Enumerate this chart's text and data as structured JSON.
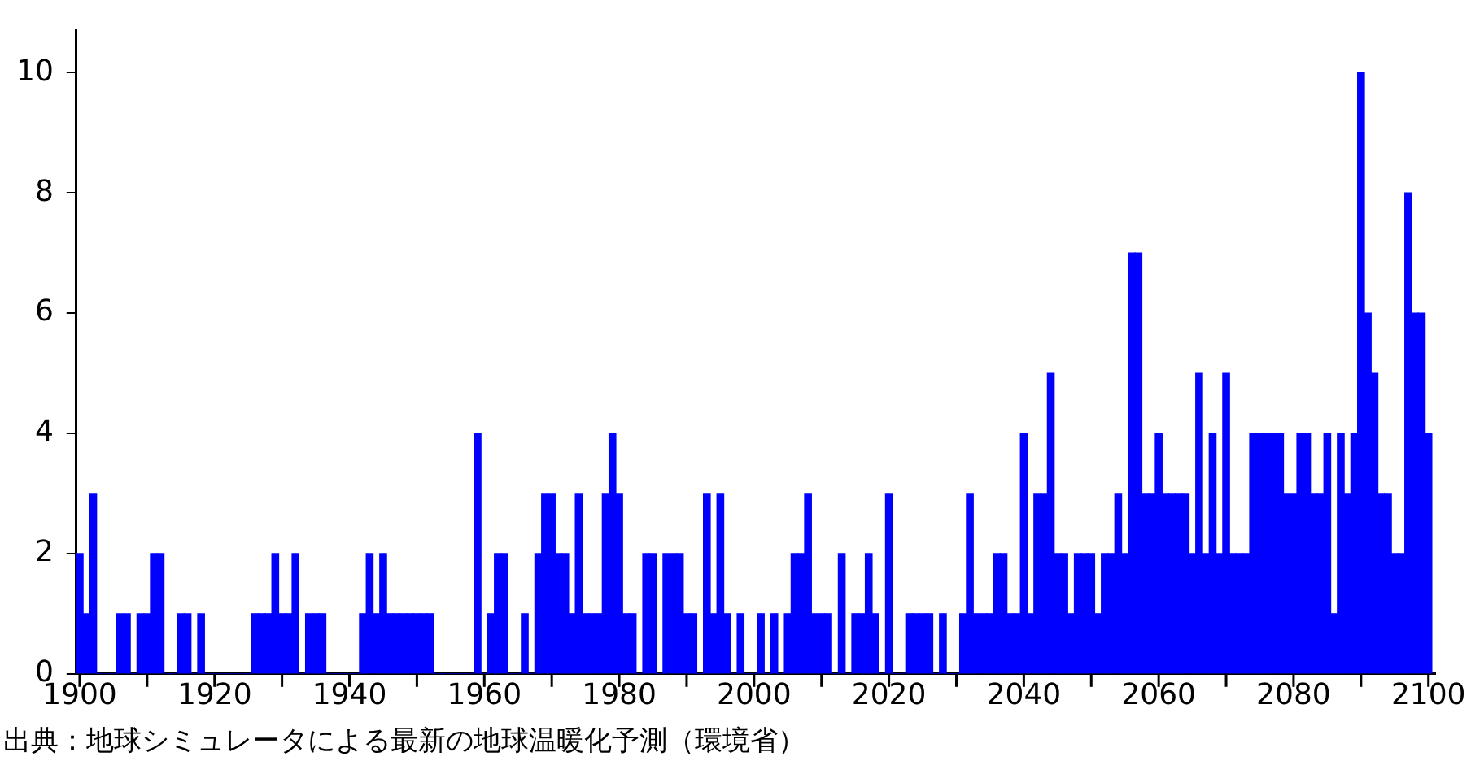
{
  "chart_data": {
    "type": "bar",
    "x": [
      1900,
      1901,
      1902,
      1903,
      1904,
      1905,
      1906,
      1907,
      1908,
      1909,
      1910,
      1911,
      1912,
      1913,
      1914,
      1915,
      1916,
      1917,
      1918,
      1919,
      1920,
      1921,
      1922,
      1923,
      1924,
      1925,
      1926,
      1927,
      1928,
      1929,
      1930,
      1931,
      1932,
      1933,
      1934,
      1935,
      1936,
      1937,
      1938,
      1939,
      1940,
      1941,
      1942,
      1943,
      1944,
      1945,
      1946,
      1947,
      1948,
      1949,
      1950,
      1951,
      1952,
      1953,
      1954,
      1955,
      1956,
      1957,
      1958,
      1959,
      1960,
      1961,
      1962,
      1963,
      1964,
      1965,
      1966,
      1967,
      1968,
      1969,
      1970,
      1971,
      1972,
      1973,
      1974,
      1975,
      1976,
      1977,
      1978,
      1979,
      1980,
      1981,
      1982,
      1983,
      1984,
      1985,
      1986,
      1987,
      1988,
      1989,
      1990,
      1991,
      1992,
      1993,
      1994,
      1995,
      1996,
      1997,
      1998,
      1999,
      2000,
      2001,
      2002,
      2003,
      2004,
      2005,
      2006,
      2007,
      2008,
      2009,
      2010,
      2011,
      2012,
      2013,
      2014,
      2015,
      2016,
      2017,
      2018,
      2019,
      2020,
      2021,
      2022,
      2023,
      2024,
      2025,
      2026,
      2027,
      2028,
      2029,
      2030,
      2031,
      2032,
      2033,
      2034,
      2035,
      2036,
      2037,
      2038,
      2039,
      2040,
      2041,
      2042,
      2043,
      2044,
      2045,
      2046,
      2047,
      2048,
      2049,
      2050,
      2051,
      2052,
      2053,
      2054,
      2055,
      2056,
      2057,
      2058,
      2059,
      2060,
      2061,
      2062,
      2063,
      2064,
      2065,
      2066,
      2067,
      2068,
      2069,
      2070,
      2071,
      2072,
      2073,
      2074,
      2075,
      2076,
      2077,
      2078,
      2079,
      2080,
      2081,
      2082,
      2083,
      2084,
      2085,
      2086,
      2087,
      2088,
      2089,
      2090,
      2091,
      2092,
      2093,
      2094,
      2095,
      2096,
      2097,
      2098,
      2099,
      2100
    ],
    "values": [
      2,
      1,
      3,
      0,
      0,
      0,
      1,
      1,
      0,
      1,
      1,
      2,
      2,
      0,
      0,
      1,
      1,
      0,
      1,
      0,
      0,
      0,
      0,
      0,
      0,
      0,
      1,
      1,
      1,
      2,
      1,
      1,
      2,
      0,
      1,
      1,
      1,
      0,
      0,
      0,
      0,
      0,
      1,
      2,
      1,
      2,
      1,
      1,
      1,
      1,
      1,
      1,
      1,
      0,
      0,
      0,
      0,
      0,
      0,
      4,
      0,
      1,
      2,
      2,
      0,
      0,
      1,
      0,
      2,
      3,
      3,
      2,
      2,
      1,
      3,
      1,
      1,
      1,
      3,
      4,
      3,
      1,
      1,
      0,
      2,
      2,
      0,
      2,
      2,
      2,
      1,
      1,
      0,
      3,
      1,
      3,
      1,
      0,
      1,
      0,
      0,
      1,
      0,
      1,
      0,
      1,
      2,
      2,
      3,
      1,
      1,
      1,
      0,
      2,
      0,
      1,
      1,
      2,
      1,
      0,
      3,
      0,
      0,
      1,
      1,
      1,
      1,
      0,
      1,
      0,
      0,
      1,
      3,
      1,
      1,
      1,
      2,
      2,
      1,
      1,
      4,
      1,
      3,
      3,
      5,
      2,
      2,
      1,
      2,
      2,
      2,
      1,
      2,
      2,
      3,
      2,
      7,
      7,
      3,
      3,
      4,
      3,
      3,
      3,
      3,
      2,
      5,
      2,
      4,
      2,
      5,
      2,
      2,
      2,
      4,
      4,
      4,
      4,
      4,
      3,
      3,
      4,
      4,
      3,
      3,
      4,
      1,
      4,
      3,
      4,
      10,
      6,
      5,
      3,
      3,
      2,
      2,
      8,
      6,
      6,
      4
    ],
    "color": "#0000ff",
    "xlim": [
      1899.5,
      2101
    ],
    "xticks": [
      1900,
      {
        "value": 1910,
        "label": null
      },
      1920,
      {
        "value": 1930,
        "label": null
      },
      1940,
      {
        "value": 1950,
        "label": null
      },
      1960,
      {
        "value": 1970,
        "label": null
      },
      1980,
      {
        "value": 1990,
        "label": null
      },
      2000,
      {
        "value": 2010,
        "label": null
      },
      2020,
      {
        "value": 2030,
        "label": null
      },
      2040,
      {
        "value": 2050,
        "label": null
      },
      2060,
      {
        "value": 2070,
        "label": null
      },
      2080,
      {
        "value": 2090,
        "label": null
      },
      2100
    ],
    "ylim": [
      0,
      10.7
    ],
    "yticks": [
      0,
      2,
      4,
      6,
      8,
      10
    ],
    "grid": false,
    "legend": false,
    "annotations": [
      "出典：地球シミュレータによる最新の地球温暖化予測（環境省）"
    ]
  }
}
